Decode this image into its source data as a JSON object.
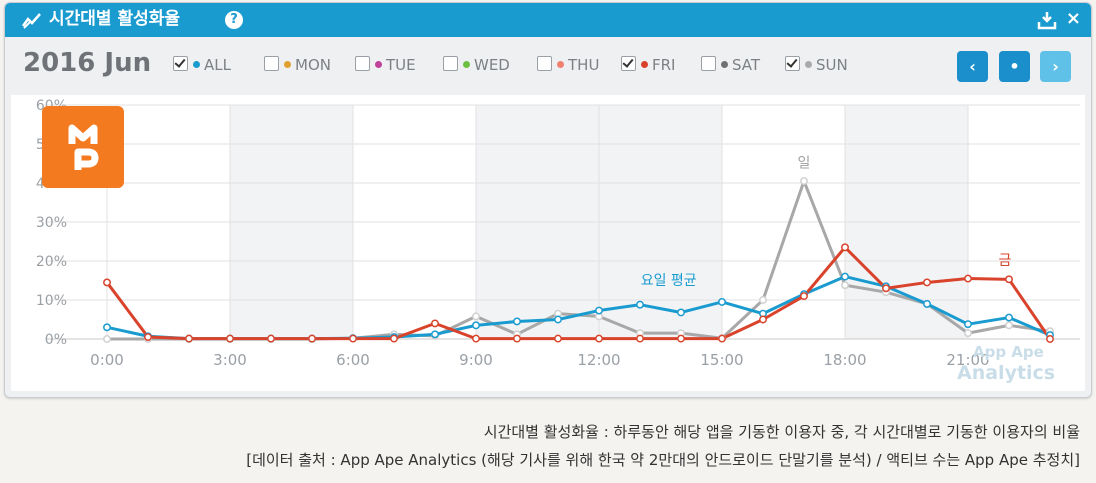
{
  "header": {
    "title": "시간대별 활성화율",
    "help": "?",
    "close": "×"
  },
  "period": "2016 Jun",
  "legend": [
    {
      "label": "ALL",
      "color": "#1a9bd0",
      "checked": true
    },
    {
      "label": "MON",
      "color": "#e0a030",
      "checked": false
    },
    {
      "label": "TUE",
      "color": "#c0409a",
      "checked": false
    },
    {
      "label": "WED",
      "color": "#6cc040",
      "checked": false
    },
    {
      "label": "THU",
      "color": "#f08070",
      "checked": false
    },
    {
      "label": "FRI",
      "color": "#d9432b",
      "checked": true
    },
    {
      "label": "SAT",
      "color": "#707070",
      "checked": false
    },
    {
      "label": "SUN",
      "color": "#aaaaaa",
      "checked": true
    }
  ],
  "nav": {
    "prev": "‹",
    "today": "•",
    "next": "›"
  },
  "watermark": {
    "line1": "App Ape",
    "line2": "Analytics"
  },
  "chart_data": {
    "type": "line",
    "x": [
      0,
      1,
      2,
      3,
      4,
      5,
      6,
      7,
      8,
      9,
      10,
      11,
      12,
      13,
      14,
      15,
      16,
      17,
      18,
      19,
      20,
      21,
      22,
      23
    ],
    "x_tick_labels": [
      "0:00",
      "3:00",
      "6:00",
      "9:00",
      "12:00",
      "15:00",
      "18:00",
      "21:00"
    ],
    "x_tick_positions": [
      0,
      3,
      6,
      9,
      12,
      15,
      18,
      21
    ],
    "y_tick_labels": [
      "0%",
      "10%",
      "20%",
      "30%",
      "40%",
      "50%",
      "60%"
    ],
    "ylim": [
      0,
      60
    ],
    "grid": true,
    "shaded_bands": [
      [
        3,
        6
      ],
      [
        9,
        15
      ],
      [
        18,
        21
      ]
    ],
    "series": [
      {
        "key": "all",
        "color": "#1a9bd0",
        "values": [
          3,
          0.7,
          0.1,
          0.1,
          0.1,
          0.1,
          0.2,
          0.5,
          1.2,
          3.5,
          4.5,
          5,
          7.3,
          8.8,
          6.8,
          9.5,
          6.5,
          11.5,
          16,
          13.5,
          9,
          3.8,
          5.5,
          1
        ]
      },
      {
        "key": "fri",
        "color": "#d9432b",
        "values": [
          14.5,
          0.5,
          0.1,
          0.1,
          0.1,
          0.1,
          0.1,
          0.1,
          4,
          0.1,
          0.1,
          0.1,
          0.1,
          0.1,
          0.1,
          0.1,
          5,
          11,
          23.5,
          13,
          14.5,
          15.5,
          15.3,
          0
        ]
      },
      {
        "key": "sun",
        "color": "#a8a8a8",
        "values": [
          0,
          0,
          0,
          0,
          0,
          0,
          0.2,
          1.2,
          0.8,
          5.8,
          1.2,
          6.5,
          5.8,
          1.5,
          1.5,
          0.2,
          10,
          40.5,
          13.8,
          12,
          9,
          1.5,
          3.5,
          2
        ]
      }
    ],
    "annotations": [
      {
        "text": "요일 평균",
        "x": 13.7,
        "y": 13.8,
        "color": "#1a9bd0"
      },
      {
        "text": "일",
        "x": 17,
        "y": 44,
        "color": "#a0a0a0"
      },
      {
        "text": "금",
        "x": 21.9,
        "y": 19,
        "color": "#d9432b"
      }
    ]
  },
  "footer": {
    "line1": "시간대별 활성화율 : 하루동안 해당 앱을 기동한 이용자 중, 각 시간대별로 기동한 이용자의 비율",
    "line2": "[데이터 출처 : App Ape Analytics (해당 기사를 위해 한국 약 2만대의 안드로이드 단말기를 분석) / 액티브 수는 App Ape 추정치]"
  }
}
